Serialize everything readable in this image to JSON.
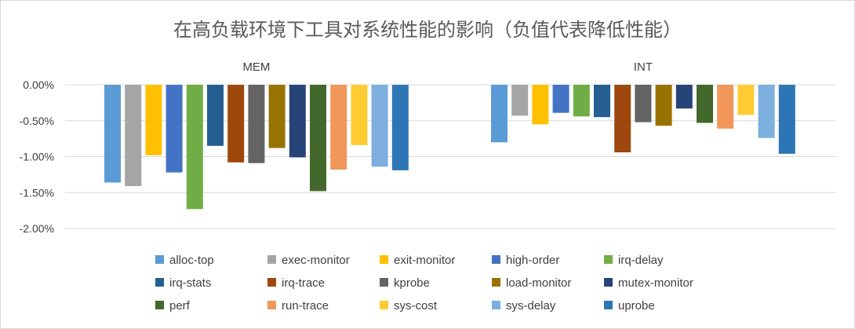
{
  "chart_data": {
    "type": "bar",
    "title": "在高负载环境下工具对系统性能的影响（负值代表降低性能）",
    "categories": [
      "MEM",
      "INT"
    ],
    "ylim": [
      -2.0,
      0.0
    ],
    "yticks": [
      "0.00%",
      "-0.50%",
      "-1.00%",
      "-1.50%",
      "-2.00%"
    ],
    "ytick_values": [
      0,
      -0.5,
      -1.0,
      -1.5,
      -2.0
    ],
    "grid": true,
    "legend_position": "bottom",
    "series": [
      {
        "name": "alloc-top",
        "color": "#5b9bd5",
        "values": [
          -1.36,
          -0.8
        ]
      },
      {
        "name": "exec-monitor",
        "color": "#a5a5a5",
        "values": [
          -1.41,
          -0.43
        ]
      },
      {
        "name": "exit-monitor",
        "color": "#ffc000",
        "values": [
          -0.98,
          -0.55
        ]
      },
      {
        "name": "high-order",
        "color": "#4472c4",
        "values": [
          -1.22,
          -0.39
        ]
      },
      {
        "name": "irq-delay",
        "color": "#70ad47",
        "values": [
          -1.73,
          -0.44
        ]
      },
      {
        "name": "irq-stats",
        "color": "#255e91",
        "values": [
          -0.85,
          -0.45
        ]
      },
      {
        "name": "irq-trace",
        "color": "#9e480e",
        "values": [
          -1.08,
          -0.94
        ]
      },
      {
        "name": "kprobe",
        "color": "#636363",
        "values": [
          -1.09,
          -0.52
        ]
      },
      {
        "name": "load-monitor",
        "color": "#997300",
        "values": [
          -0.88,
          -0.57
        ]
      },
      {
        "name": "mutex-monitor",
        "color": "#264478",
        "values": [
          -1.01,
          -0.33
        ]
      },
      {
        "name": "perf",
        "color": "#43682b",
        "values": [
          -1.48,
          -0.53
        ]
      },
      {
        "name": "run-trace",
        "color": "#f1975a",
        "values": [
          -1.18,
          -0.61
        ]
      },
      {
        "name": "sys-cost",
        "color": "#ffcd33",
        "values": [
          -0.84,
          -0.42
        ]
      },
      {
        "name": "sys-delay",
        "color": "#7cafdd",
        "values": [
          -1.14,
          -0.74
        ]
      },
      {
        "name": "uprobe",
        "color": "#2e75b6",
        "values": [
          -1.19,
          -0.96
        ]
      }
    ]
  }
}
